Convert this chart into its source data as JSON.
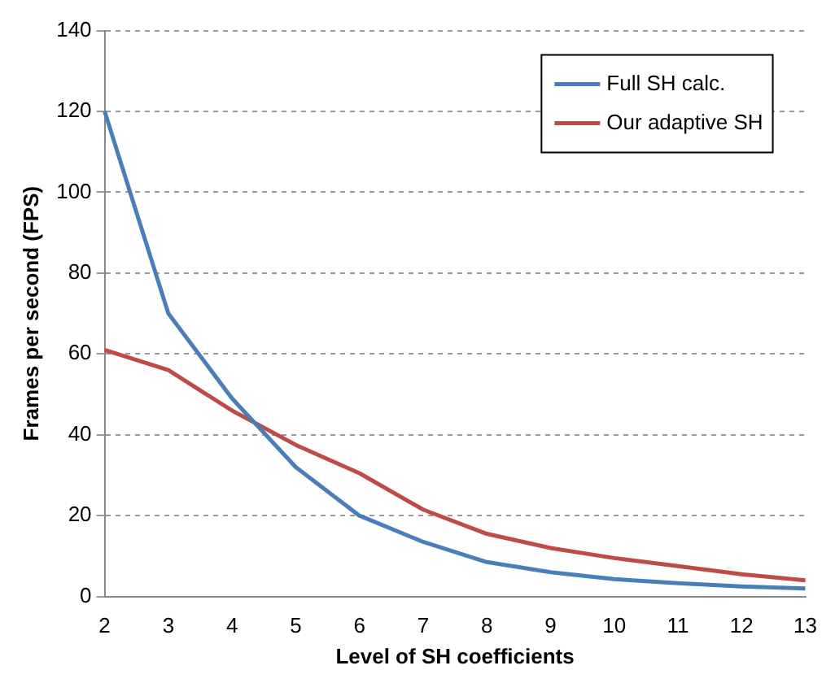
{
  "chart_data": {
    "type": "line",
    "xlabel": "Level of SH coefficients",
    "ylabel": "Frames per second (FPS)",
    "categories": [
      "2",
      "3",
      "4",
      "5",
      "6",
      "7",
      "8",
      "9",
      "10",
      "11",
      "12",
      "13"
    ],
    "series": [
      {
        "name": "Full SH calc.",
        "color": "#4a7ebb",
        "values": [
          120,
          70,
          49,
          32,
          20,
          13.5,
          8.5,
          6,
          4.3,
          3.3,
          2.5,
          2
        ]
      },
      {
        "name": "Our adaptive SH",
        "color": "#be4b48",
        "values": [
          61,
          56,
          46,
          37.5,
          30.5,
          21.5,
          15.5,
          12,
          9.5,
          7.5,
          5.5,
          4
        ]
      }
    ],
    "ylim": [
      0,
      140
    ],
    "yticks": [
      0,
      20,
      40,
      60,
      80,
      100,
      120,
      140
    ],
    "grid": "y",
    "legend": "top right",
    "marker": "none",
    "line_style": "solid"
  }
}
